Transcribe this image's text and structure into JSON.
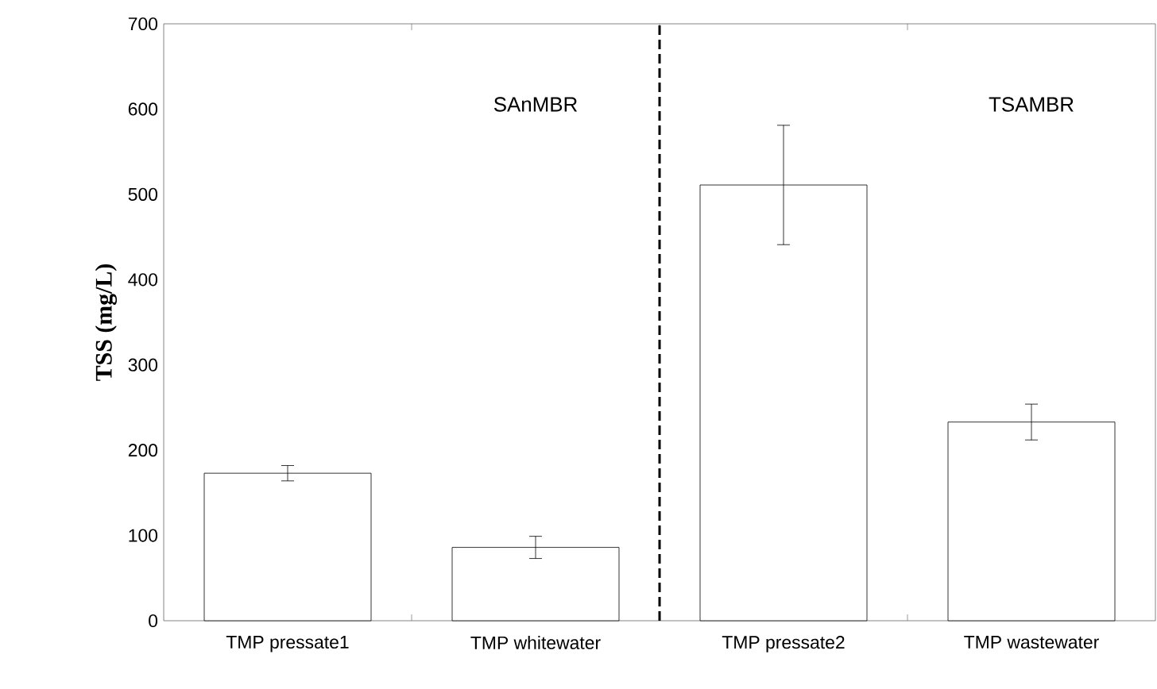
{
  "chart_data": {
    "type": "bar",
    "ylabel": "TSS (mg/L)",
    "categories": [
      "TMP pressate1",
      "TMP whitewater",
      "TMP pressate2",
      "TMP wastewater"
    ],
    "values": [
      173,
      86,
      511,
      233
    ],
    "errors": [
      9,
      13,
      70,
      21
    ],
    "color": "#ffffff",
    "ylim": [
      0,
      700
    ],
    "yticks": [
      0,
      100,
      200,
      300,
      400,
      500,
      600,
      700
    ],
    "annotations": [
      "SAnMBR",
      "TSAMBR"
    ]
  }
}
